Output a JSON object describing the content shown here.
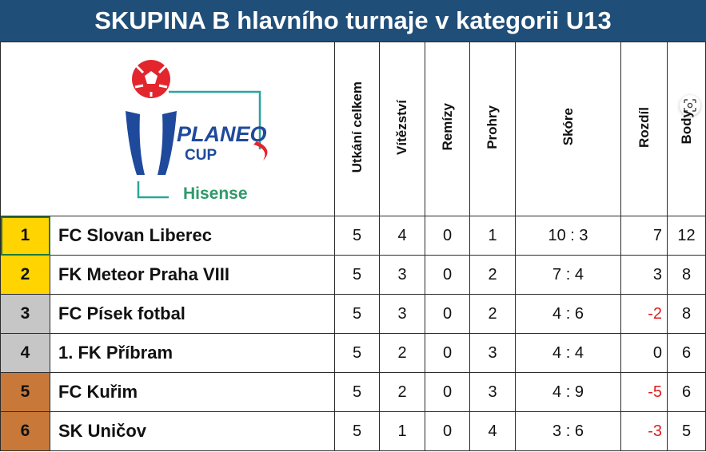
{
  "title": "SKUPINA B hlavního turnaje v kategorii U13",
  "logo": {
    "brand": "PLANEO",
    "brand2": "CUP",
    "sponsor": "Hisense"
  },
  "headers": [
    "Utkání celkem",
    "Vítězství",
    "Remízy",
    "Prohry",
    "Skóre",
    "Rozdíl",
    "Body"
  ],
  "rows": [
    {
      "pos": "1",
      "team": "FC Slovan Liberec",
      "played": "5",
      "wins": "4",
      "draws": "0",
      "losses": "1",
      "score": "10 : 3",
      "diff": "7",
      "points": "12"
    },
    {
      "pos": "2",
      "team": "FK Meteor Praha VIII",
      "played": "5",
      "wins": "3",
      "draws": "0",
      "losses": "2",
      "score": "7 : 4",
      "diff": "3",
      "points": "8"
    },
    {
      "pos": "3",
      "team": "FC Písek fotbal",
      "played": "5",
      "wins": "3",
      "draws": "0",
      "losses": "2",
      "score": "4 : 6",
      "diff": "-2",
      "points": "8"
    },
    {
      "pos": "4",
      "team": "1. FK Příbram",
      "played": "5",
      "wins": "2",
      "draws": "0",
      "losses": "3",
      "score": "4 : 4",
      "diff": "0",
      "points": "6"
    },
    {
      "pos": "5",
      "team": "FC Kuřim",
      "played": "5",
      "wins": "2",
      "draws": "0",
      "losses": "3",
      "score": "4 : 9",
      "diff": "-5",
      "points": "6"
    },
    {
      "pos": "6",
      "team": "SK Uničov",
      "played": "5",
      "wins": "1",
      "draws": "0",
      "losses": "4",
      "score": "3 : 6",
      "diff": "-3",
      "points": "5"
    }
  ],
  "colors": {
    "title_bg": "#1f4e79",
    "pos_gold": "#ffd400",
    "pos_silver": "#c6c6c6",
    "pos_bronze": "#c8793a",
    "negative": "#e11b1b",
    "logo_blue": "#1f4a9c",
    "logo_red": "#e3262e",
    "logo_teal": "#2aa59a",
    "logo_green": "#2e9a6a"
  },
  "icons": {
    "logo": "planeo-cup-logo",
    "corner": "screenshot-lens-icon"
  }
}
